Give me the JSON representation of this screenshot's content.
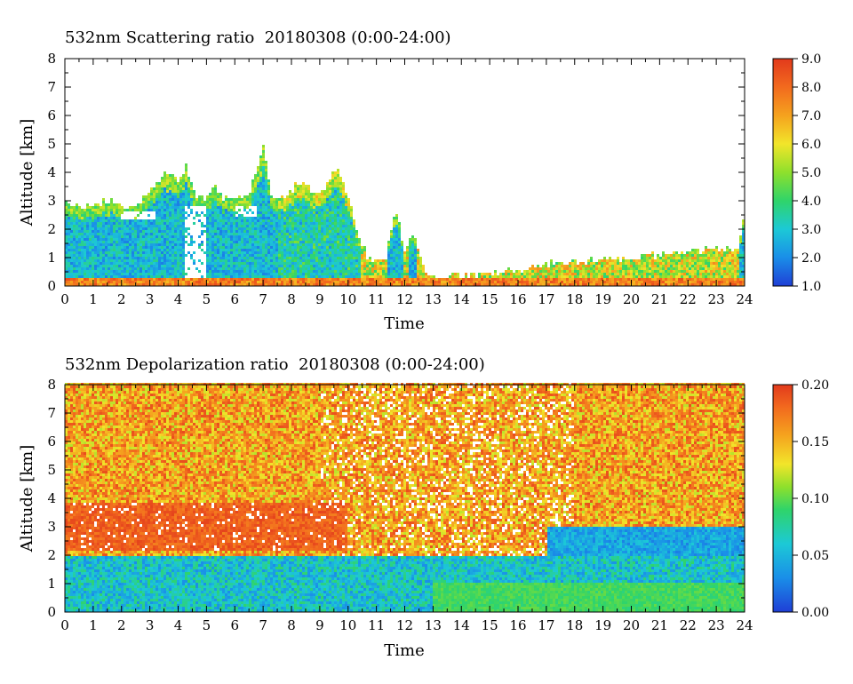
{
  "chart_data": [
    {
      "type": "heatmap",
      "title": "532nm Scattering ratio  20180308 (0:00-24:00)",
      "xlabel": "Time",
      "ylabel": "Altitude [km]",
      "x_ticks": [
        "0",
        "1",
        "2",
        "3",
        "4",
        "5",
        "6",
        "7",
        "8",
        "9",
        "10",
        "11",
        "12",
        "13",
        "14",
        "15",
        "16",
        "17",
        "18",
        "19",
        "20",
        "21",
        "22",
        "23",
        "24"
      ],
      "y_ticks": [
        "0",
        "1",
        "2",
        "3",
        "4",
        "5",
        "6",
        "7",
        "8"
      ],
      "xlim": [
        0,
        24
      ],
      "ylim": [
        0,
        8
      ],
      "colorbar": {
        "range": [
          1.0,
          9.0
        ],
        "tick_labels": [
          "1.0",
          "2.0",
          "3.0",
          "4.0",
          "5.0",
          "6.0",
          "7.0",
          "8.0",
          "9.0"
        ]
      },
      "features": {
        "cloud_top_km": [
          [
            0,
            3.0
          ],
          [
            0.5,
            2.8
          ],
          [
            1,
            2.8
          ],
          [
            1.5,
            3.0
          ],
          [
            2,
            2.9
          ],
          [
            2.5,
            2.7
          ],
          [
            3,
            3.3
          ],
          [
            3.5,
            4.0
          ],
          [
            4,
            3.7
          ],
          [
            4.3,
            4.2
          ],
          [
            4.6,
            3.2
          ],
          [
            5,
            3.1
          ],
          [
            5.3,
            3.5
          ],
          [
            5.6,
            3.1
          ],
          [
            6,
            3.0
          ],
          [
            6.5,
            3.2
          ],
          [
            6.8,
            4.2
          ],
          [
            7,
            5.0
          ],
          [
            7.3,
            3.1
          ],
          [
            7.6,
            3.0
          ],
          [
            8,
            3.4
          ],
          [
            8.4,
            3.7
          ],
          [
            8.8,
            3.2
          ],
          [
            9.2,
            3.5
          ],
          [
            9.6,
            4.2
          ],
          [
            10,
            3.2
          ],
          [
            10.3,
            2.0
          ],
          [
            10.7,
            1.0
          ],
          [
            11,
            0.8
          ],
          [
            11.3,
            0.9
          ],
          [
            11.7,
            2.7
          ],
          [
            12,
            1.3
          ],
          [
            12.3,
            1.8
          ],
          [
            12.7,
            0.6
          ],
          [
            13,
            0.35
          ],
          [
            14,
            0.35
          ],
          [
            15,
            0.4
          ],
          [
            16,
            0.6
          ],
          [
            17,
            0.8
          ],
          [
            18,
            0.8
          ],
          [
            19,
            1.0
          ],
          [
            20,
            1.0
          ],
          [
            21,
            1.1
          ],
          [
            22,
            1.2
          ],
          [
            23,
            1.3
          ],
          [
            23.8,
            1.4
          ],
          [
            24,
            2.8
          ]
        ],
        "surface_layer_top_km": 0.3,
        "high_ratio_gaps": [
          {
            "t": [
              2.0,
              3.2
            ],
            "alt": [
              2.3,
              2.6
            ]
          },
          {
            "t": [
              4.2,
              5.0
            ],
            "alt": [
              0.3,
              2.8
            ]
          },
          {
            "t": [
              6.0,
              6.8
            ],
            "alt": [
              2.4,
              2.8
            ]
          }
        ]
      }
    },
    {
      "type": "heatmap",
      "title": "532nm Depolarization ratio  20180308 (0:00-24:00)",
      "xlabel": "Time",
      "ylabel": "Altitude [km]",
      "x_ticks": [
        "0",
        "1",
        "2",
        "3",
        "4",
        "5",
        "6",
        "7",
        "8",
        "9",
        "10",
        "11",
        "12",
        "13",
        "14",
        "15",
        "16",
        "17",
        "18",
        "19",
        "20",
        "21",
        "22",
        "23",
        "24"
      ],
      "y_ticks": [
        "0",
        "1",
        "2",
        "3",
        "4",
        "5",
        "6",
        "7",
        "8"
      ],
      "xlim": [
        0,
        24
      ],
      "ylim": [
        0,
        8
      ],
      "colorbar": {
        "range": [
          0.0,
          0.2
        ],
        "tick_labels": [
          "0.00",
          "0.05",
          "0.10",
          "0.15",
          "0.20"
        ]
      },
      "features": {
        "dust_layer_km": {
          "t": [
            0,
            10
          ],
          "alt": [
            2.2,
            3.8
          ],
          "value": 0.18
        },
        "low_layer_km": {
          "alt": [
            0,
            2.0
          ],
          "value_mean": 0.05
        },
        "free_troposphere_value": 0.19,
        "low_depol_band_km": {
          "t": [
            17,
            24
          ],
          "alt": [
            2.0,
            3.0
          ],
          "value": 0.02
        }
      }
    }
  ]
}
